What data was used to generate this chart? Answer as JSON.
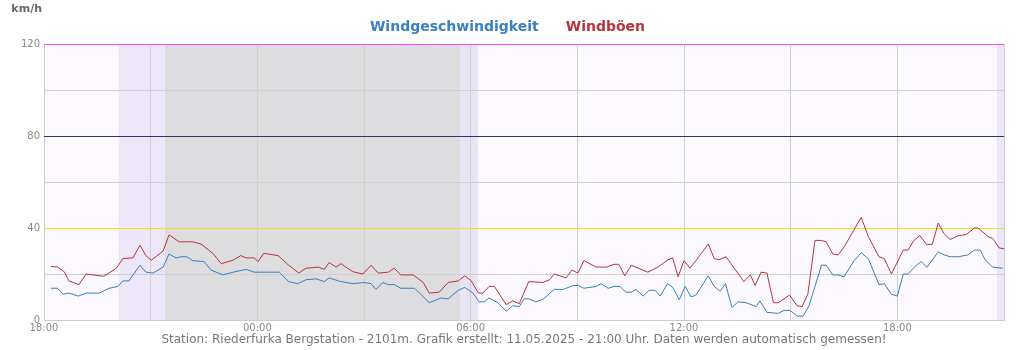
{
  "chart_data": {
    "type": "line",
    "ylabel": "km/h",
    "legend": "top",
    "grid": true,
    "marker": "none",
    "xlim": [
      "2025-05-10T18:00",
      "2025-05-11T21:00"
    ],
    "xticks": [
      {
        "value": "2025-05-10T18:00",
        "label": "18:00"
      },
      {
        "value": "2025-05-10T21:00",
        "label": null
      },
      {
        "value": "2025-05-11T00:00",
        "label": "00:00"
      },
      {
        "value": "2025-05-11T03:00",
        "label": null
      },
      {
        "value": "2025-05-11T06:00",
        "label": "06:00"
      },
      {
        "value": "2025-05-11T09:00",
        "label": null
      },
      {
        "value": "2025-05-11T12:00",
        "label": "12:00"
      },
      {
        "value": "2025-05-11T15:00",
        "label": null
      },
      {
        "value": "2025-05-11T18:00",
        "label": "18:00"
      },
      {
        "value": "2025-05-11T21:00",
        "label": null
      }
    ],
    "ylim": [
      0,
      120
    ],
    "yticks": [
      0,
      {
        "value": 20,
        "label": null
      },
      40,
      {
        "value": 60,
        "label": null
      },
      80,
      {
        "value": 100,
        "label": null
      },
      120
    ],
    "bands": [
      {
        "axis": "x",
        "from": "2025-05-10T20:06",
        "to": "2025-05-10T21:24",
        "color": "#ece6f8"
      },
      {
        "axis": "x",
        "from": "2025-05-10T21:24",
        "to": "2025-05-11T05:42",
        "color": "#dddde0"
      },
      {
        "axis": "x",
        "from": "2025-05-11T05:42",
        "to": "2025-05-11T06:12",
        "color": "#e8e4f4"
      },
      {
        "axis": "x",
        "from": "2025-05-11T20:48",
        "to": "2025-05-11T21:00",
        "color": "#ece6f8"
      }
    ],
    "ref_lines": [
      {
        "axis": "y",
        "value": 40,
        "color": "#f0e020"
      },
      {
        "axis": "y",
        "value": 80,
        "color": "#333366"
      },
      {
        "axis": "y",
        "value": 120,
        "color": "#ff44ff"
      }
    ],
    "annotations": [
      "Station: Riederfurka Bergstation - 2101m. Grafik erstellt: 11.05.2025 - 21:00 Uhr. Daten werden automatisch gemessen!"
    ],
    "series": [
      {
        "name": "Windgeschwindigkeit",
        "color": "#3a7fc0",
        "x": [
          "2025-05-10T18:12",
          "2025-05-10T18:23",
          "2025-05-10T18:32",
          "2025-05-10T18:42",
          "2025-05-10T18:58",
          "2025-05-10T19:11",
          "2025-05-10T19:33",
          "2025-05-10T19:50",
          "2025-05-10T20:05",
          "2025-05-10T20:13",
          "2025-05-10T20:23",
          "2025-05-10T20:42",
          "2025-05-10T20:52",
          "2025-05-10T21:04",
          "2025-05-10T21:21",
          "2025-05-10T21:31",
          "2025-05-10T21:43",
          "2025-05-10T21:51",
          "2025-05-10T22:01",
          "2025-05-10T22:11",
          "2025-05-10T22:30",
          "2025-05-10T22:42",
          "2025-05-10T23:02",
          "2025-05-10T23:19",
          "2025-05-10T23:41",
          "2025-05-10T23:55",
          "2025-05-11T00:37",
          "2025-05-11T00:53",
          "2025-05-11T01:08",
          "2025-05-11T01:22",
          "2025-05-11T01:39",
          "2025-05-11T01:53",
          "2025-05-11T02:01",
          "2025-05-11T02:21",
          "2025-05-11T02:41",
          "2025-05-11T03:00",
          "2025-05-11T03:12",
          "2025-05-11T03:20",
          "2025-05-11T03:32",
          "2025-05-11T03:41",
          "2025-05-11T03:51",
          "2025-05-11T04:02",
          "2025-05-11T04:25",
          "2025-05-11T04:36",
          "2025-05-11T04:50",
          "2025-05-11T05:10",
          "2025-05-11T05:22",
          "2025-05-11T05:39",
          "2025-05-11T05:50",
          "2025-05-11T06:04",
          "2025-05-11T06:14",
          "2025-05-11T06:23",
          "2025-05-11T06:31",
          "2025-05-11T06:46",
          "2025-05-11T07:00",
          "2025-05-11T07:11",
          "2025-05-11T07:22",
          "2025-05-11T07:30",
          "2025-05-11T07:38",
          "2025-05-11T07:50",
          "2025-05-11T08:02",
          "2025-05-11T08:21",
          "2025-05-11T08:36",
          "2025-05-11T08:53",
          "2025-05-11T09:01",
          "2025-05-11T09:11",
          "2025-05-11T09:32",
          "2025-05-11T09:40",
          "2025-05-11T09:52",
          "2025-05-11T10:02",
          "2025-05-11T10:12",
          "2025-05-11T10:22",
          "2025-05-11T10:31",
          "2025-05-11T10:39",
          "2025-05-11T10:51",
          "2025-05-11T11:01",
          "2025-05-11T11:11",
          "2025-05-11T11:20",
          "2025-05-11T11:32",
          "2025-05-11T11:41",
          "2025-05-11T11:52",
          "2025-05-11T12:02",
          "2025-05-11T12:12",
          "2025-05-11T12:20",
          "2025-05-11T12:41",
          "2025-05-11T12:51",
          "2025-05-11T13:01",
          "2025-05-11T13:10",
          "2025-05-11T13:21",
          "2025-05-11T13:31",
          "2025-05-11T13:45",
          "2025-05-11T14:02",
          "2025-05-11T14:08",
          "2025-05-11T14:20",
          "2025-05-11T14:39",
          "2025-05-11T14:49",
          "2025-05-11T14:59",
          "2025-05-11T15:11",
          "2025-05-11T15:21",
          "2025-05-11T15:31",
          "2025-05-11T15:52",
          "2025-05-11T16:00",
          "2025-05-11T16:11",
          "2025-05-11T16:20",
          "2025-05-11T16:30",
          "2025-05-11T16:47",
          "2025-05-11T16:59",
          "2025-05-11T17:11",
          "2025-05-11T17:29",
          "2025-05-11T17:38",
          "2025-05-11T17:50",
          "2025-05-11T18:00",
          "2025-05-11T18:10",
          "2025-05-11T18:18",
          "2025-05-11T18:32",
          "2025-05-11T18:40",
          "2025-05-11T18:50",
          "2025-05-11T19:09",
          "2025-05-11T19:19",
          "2025-05-11T19:29",
          "2025-05-11T19:43",
          "2025-05-11T19:59",
          "2025-05-11T20:10",
          "2025-05-11T20:20",
          "2025-05-11T20:28",
          "2025-05-11T20:41",
          "2025-05-11T20:58"
        ],
        "values": [
          13.8,
          13.8,
          11.2,
          11.7,
          10.4,
          11.7,
          11.7,
          13.8,
          14.6,
          17,
          17,
          23.8,
          20.8,
          20.4,
          23,
          28.7,
          27,
          27.5,
          27.5,
          25.8,
          25.4,
          21.7,
          19.6,
          20.8,
          22,
          20.8,
          20.8,
          16.7,
          15.8,
          17.5,
          17.9,
          16.7,
          18.3,
          16.7,
          15.8,
          16.3,
          15.8,
          13.3,
          16.3,
          15.4,
          15.4,
          13.8,
          13.8,
          11.2,
          7.5,
          9.6,
          9.2,
          12.9,
          14.2,
          11.7,
          7.9,
          7.9,
          9.6,
          7.5,
          3.8,
          6.2,
          5.8,
          9.2,
          9.2,
          7.9,
          9,
          13.3,
          13.3,
          15,
          15,
          13.8,
          14.6,
          15.8,
          13.8,
          14.6,
          14.6,
          12.1,
          12.1,
          13.3,
          10.4,
          12.9,
          12.9,
          10.4,
          15.8,
          14.2,
          8.8,
          14.6,
          10,
          10.8,
          19.2,
          14.6,
          12.5,
          15.8,
          5.4,
          7.9,
          7.5,
          5.8,
          8.3,
          3.3,
          2.9,
          4.2,
          4.2,
          1.7,
          1.7,
          6.2,
          23.8,
          23.8,
          19.6,
          19.6,
          18.8,
          25.8,
          29.2,
          26.7,
          15.4,
          15.8,
          11.2,
          10.4,
          20,
          20,
          23.8,
          25.4,
          22.9,
          29.6,
          28.3,
          27.5,
          27.5,
          28.3,
          30.4,
          30.4,
          26.2,
          23,
          22.5
        ]
      },
      {
        "name": "Windböen",
        "color": "#b8333c",
        "x": [
          "2025-05-10T18:12",
          "2025-05-10T18:23",
          "2025-05-10T18:34",
          "2025-05-10T18:42",
          "2025-05-10T18:59",
          "2025-05-10T19:11",
          "2025-05-10T19:41",
          "2025-05-10T20:02",
          "2025-05-10T20:13",
          "2025-05-10T20:30",
          "2025-05-10T20:42",
          "2025-05-10T20:52",
          "2025-05-10T21:01",
          "2025-05-10T21:21",
          "2025-05-10T21:31",
          "2025-05-10T21:48",
          "2025-05-10T22:11",
          "2025-05-10T22:25",
          "2025-05-10T22:45",
          "2025-05-10T22:59",
          "2025-05-10T23:19",
          "2025-05-10T23:32",
          "2025-05-10T23:41",
          "2025-05-10T23:55",
          "2025-05-11T00:01",
          "2025-05-11T00:11",
          "2025-05-11T00:35",
          "2025-05-11T00:53",
          "2025-05-11T01:10",
          "2025-05-11T01:22",
          "2025-05-11T01:43",
          "2025-05-11T01:53",
          "2025-05-11T02:01",
          "2025-05-11T02:13",
          "2025-05-11T02:21",
          "2025-05-11T02:41",
          "2025-05-11T02:58",
          "2025-05-11T03:12",
          "2025-05-11T03:24",
          "2025-05-11T03:41",
          "2025-05-11T03:51",
          "2025-05-11T04:02",
          "2025-05-11T04:23",
          "2025-05-11T04:40",
          "2025-05-11T04:50",
          "2025-05-11T05:07",
          "2025-05-11T05:22",
          "2025-05-11T05:39",
          "2025-05-11T05:50",
          "2025-05-11T06:01",
          "2025-05-11T06:13",
          "2025-05-11T06:21",
          "2025-05-11T06:31",
          "2025-05-11T06:40",
          "2025-05-11T07:00",
          "2025-05-11T07:11",
          "2025-05-11T07:22",
          "2025-05-11T07:38",
          "2025-05-11T08:02",
          "2025-05-11T08:13",
          "2025-05-11T08:21",
          "2025-05-11T08:41",
          "2025-05-11T08:51",
          "2025-05-11T09:01",
          "2025-05-11T09:11",
          "2025-05-11T09:32",
          "2025-05-11T09:49",
          "2025-05-11T10:02",
          "2025-05-11T10:10",
          "2025-05-11T10:20",
          "2025-05-11T10:31",
          "2025-05-11T10:59",
          "2025-05-11T11:16",
          "2025-05-11T11:33",
          "2025-05-11T11:41",
          "2025-05-11T11:50",
          "2025-05-11T12:00",
          "2025-05-11T12:10",
          "2025-05-11T12:20",
          "2025-05-11T12:41",
          "2025-05-11T12:51",
          "2025-05-11T12:59",
          "2025-05-11T13:11",
          "2025-05-11T13:19",
          "2025-05-11T13:41",
          "2025-05-11T13:52",
          "2025-05-11T14:00",
          "2025-05-11T14:10",
          "2025-05-11T14:20",
          "2025-05-11T14:31",
          "2025-05-11T14:39",
          "2025-05-11T14:58",
          "2025-05-11T15:11",
          "2025-05-11T15:19",
          "2025-05-11T15:29",
          "2025-05-11T15:41",
          "2025-05-11T15:52",
          "2025-05-11T16:00",
          "2025-05-11T16:11",
          "2025-05-11T16:20",
          "2025-05-11T16:30",
          "2025-05-11T16:59",
          "2025-05-11T17:11",
          "2025-05-11T17:29",
          "2025-05-11T17:38",
          "2025-05-11T17:50",
          "2025-05-11T18:10",
          "2025-05-11T18:18",
          "2025-05-11T18:28",
          "2025-05-11T18:38",
          "2025-05-11T18:49",
          "2025-05-11T18:59",
          "2025-05-11T19:09",
          "2025-05-11T19:19",
          "2025-05-11T19:29",
          "2025-05-11T19:43",
          "2025-05-11T19:56",
          "2025-05-11T20:10",
          "2025-05-11T20:16",
          "2025-05-11T20:33",
          "2025-05-11T20:41",
          "2025-05-11T20:52",
          "2025-05-11T21:00"
        ],
        "values": [
          23.3,
          23,
          21,
          17,
          15.4,
          20,
          19,
          22.5,
          26.7,
          27,
          32.5,
          28,
          26,
          30,
          37,
          34,
          34,
          33,
          29,
          24.5,
          26,
          28,
          27,
          27,
          25.4,
          29,
          28,
          23.8,
          20.4,
          22.5,
          23,
          22,
          25,
          23,
          24.5,
          21,
          20,
          23.8,
          20.4,
          20.8,
          22.5,
          19.6,
          19.6,
          16.3,
          11.7,
          12.1,
          16.3,
          17,
          19.2,
          17,
          11.7,
          11.7,
          14.6,
          14.6,
          6.7,
          8.3,
          7.1,
          16.7,
          16.3,
          17.5,
          20,
          18.3,
          21.7,
          20.4,
          25.8,
          23,
          23,
          24.2,
          24.2,
          19.2,
          23.8,
          20.8,
          23,
          26.2,
          27,
          18.8,
          25.8,
          22.5,
          25.8,
          33,
          26.7,
          26.2,
          27.5,
          24.6,
          16.7,
          19.6,
          15,
          20.8,
          20.4,
          7.5,
          7.5,
          10.8,
          6.2,
          5.8,
          11.2,
          34.6,
          34.6,
          34,
          28.7,
          28.3,
          31.7,
          44.6,
          36.3,
          27.5,
          26.7,
          20,
          30.4,
          30.4,
          34.6,
          36.7,
          32.9,
          32.9,
          42.1,
          37.5,
          35,
          36.7,
          37.1,
          40,
          40,
          36.3,
          35.4,
          31.3,
          31
        ]
      }
    ]
  }
}
